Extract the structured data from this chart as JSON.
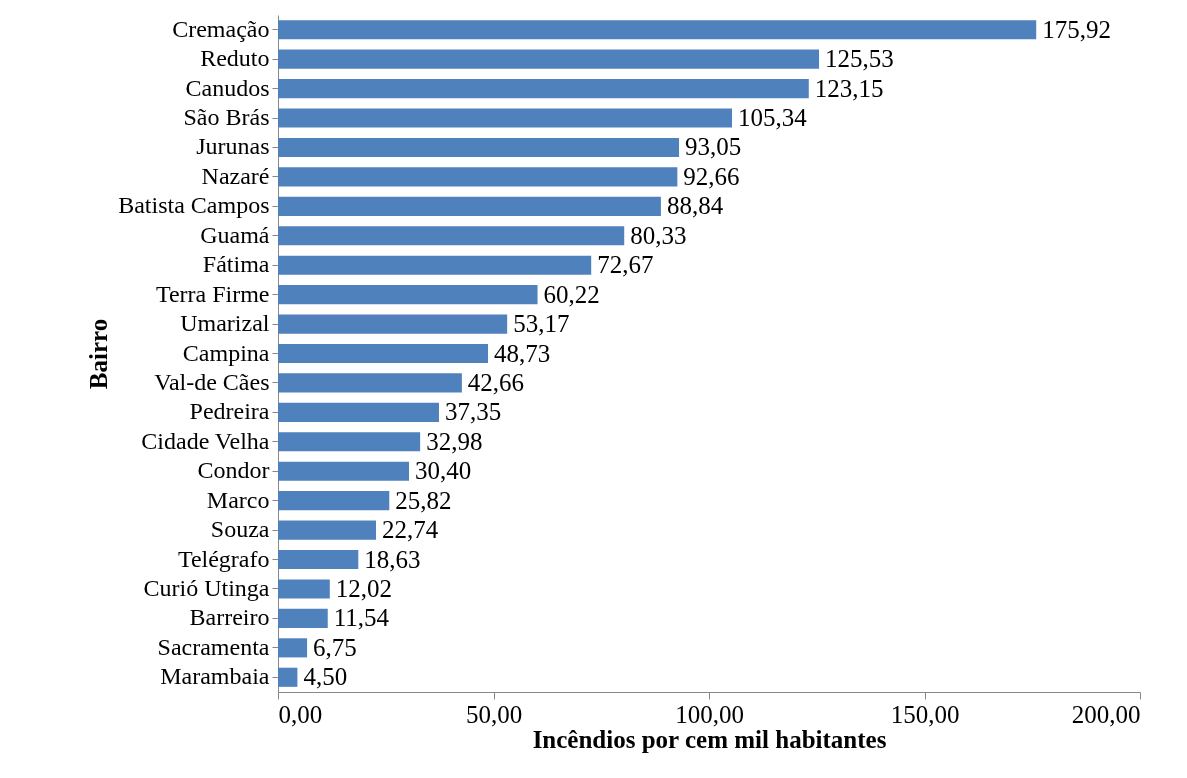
{
  "chart_data": {
    "type": "bar",
    "orientation": "horizontal",
    "xlabel": "Incêndios por cem mil habitantes",
    "ylabel": "Bairro",
    "categories": [
      "Cremação",
      "Reduto",
      "Canudos",
      "São Brás",
      "Jurunas",
      "Nazaré",
      "Batista Campos",
      "Guamá",
      "Fátima",
      "Terra Firme",
      "Umarizal",
      "Campina",
      "Val-de Cães",
      "Pedreira",
      "Cidade Velha",
      "Condor",
      "Marco",
      "Souza",
      "Telégrafo",
      "Curió Utinga",
      "Barreiro",
      "Sacramenta",
      "Marambaia"
    ],
    "values": [
      175.92,
      125.53,
      123.15,
      105.34,
      93.05,
      92.66,
      88.84,
      80.33,
      72.67,
      60.22,
      53.17,
      48.73,
      42.66,
      37.35,
      32.98,
      30.4,
      25.82,
      22.74,
      18.63,
      12.02,
      11.54,
      6.75,
      4.5
    ],
    "value_labels": [
      "175,92",
      "125,53",
      "123,15",
      "105,34",
      "93,05",
      "92,66",
      "88,84",
      "80,33",
      "72,67",
      "60,22",
      "53,17",
      "48,73",
      "42,66",
      "37,35",
      "32,98",
      "30,40",
      "25,82",
      "22,74",
      "18,63",
      "12,02",
      "11,54",
      "6,75",
      "4,50"
    ],
    "color": "#4f81bd",
    "xlim": [
      0,
      200
    ],
    "xticks": [
      {
        "value": 0,
        "label": "0,00"
      },
      {
        "value": 50,
        "label": "50,00"
      },
      {
        "value": 100,
        "label": "100,00"
      },
      {
        "value": 150,
        "label": "150,00"
      },
      {
        "value": 200,
        "label": "200,00"
      }
    ],
    "grid": false
  }
}
